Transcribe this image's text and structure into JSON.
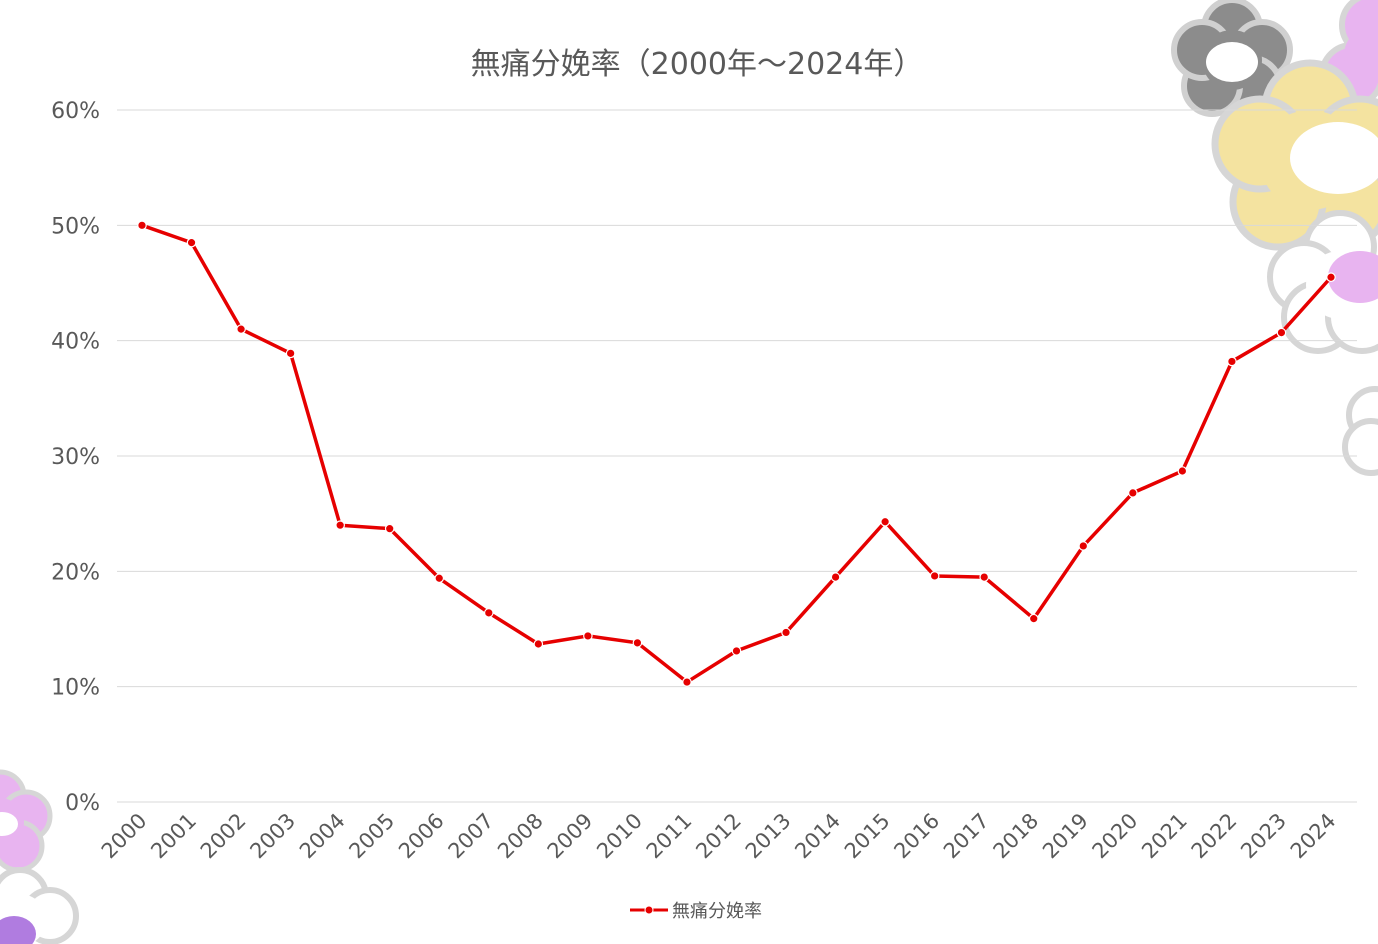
{
  "chart_data": {
    "type": "line",
    "title": "無痛分娩率（2000年～2024年）",
    "xlabel": "",
    "ylabel": "",
    "ylim": [
      0,
      60
    ],
    "y_ticks": [
      "0%",
      "10%",
      "20%",
      "30%",
      "40%",
      "50%",
      "60%"
    ],
    "categories": [
      "2000",
      "2001",
      "2002",
      "2003",
      "2004",
      "2005",
      "2006",
      "2007",
      "2008",
      "2009",
      "2010",
      "2011",
      "2012",
      "2013",
      "2014",
      "2015",
      "2016",
      "2017",
      "2018",
      "2019",
      "2020",
      "2021",
      "2022",
      "2023",
      "2024"
    ],
    "series": [
      {
        "name": "無痛分娩率",
        "color": "#e60000",
        "values": [
          50.0,
          48.5,
          41.0,
          38.9,
          24.0,
          23.7,
          19.4,
          16.4,
          13.7,
          14.4,
          13.8,
          10.4,
          13.1,
          14.7,
          19.5,
          24.3,
          19.6,
          19.5,
          15.9,
          22.2,
          26.8,
          28.7,
          38.2,
          40.7,
          45.5
        ]
      }
    ],
    "grid": true,
    "legend_position": "bottom"
  }
}
